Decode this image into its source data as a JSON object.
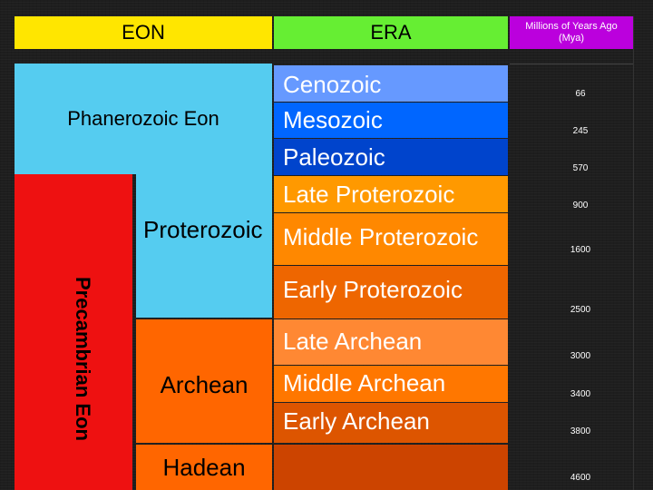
{
  "headers": {
    "eon": "EON",
    "era": "ERA",
    "mya": "Millions of Years Ago (Mya)"
  },
  "eons": {
    "phanerozoic": "Phanerozoic Eon",
    "precambrian": "Precambrian Eon",
    "proterozoic": "Proterozoic",
    "archean": "Archean",
    "hadean": "Hadean"
  },
  "eras": [
    {
      "name": "Cenozoic",
      "mya": "66"
    },
    {
      "name": "Mesozoic",
      "mya": "245"
    },
    {
      "name": "Paleozoic",
      "mya": "570"
    },
    {
      "name": "Late Proterozoic",
      "mya": "900"
    },
    {
      "name": "Middle Proterozoic",
      "mya": "1600"
    },
    {
      "name": "Early Proterozoic",
      "mya": "2500"
    },
    {
      "name": "Late Archean",
      "mya": "3000"
    },
    {
      "name": "Middle Archean",
      "mya": "3400"
    },
    {
      "name": "Early Archean",
      "mya": "3800"
    },
    {
      "name": "",
      "mya": "4600"
    }
  ],
  "colors": {
    "eon_header": "#FFE600",
    "era_header": "#66EE33",
    "mya_header": "#BB00DD",
    "phanerozoic": "#55CCF0",
    "precambrian": "#EE1111",
    "proterozoic_eon": "#55CCF0",
    "archean_eon": "#FF6600",
    "hadean_eon": "#FF6600",
    "cenozoic": "#6699FF",
    "mesozoic": "#0066FF",
    "paleozoic": "#0044CC",
    "late_proterozoic": "#FF9900",
    "middle_proterozoic": "#FF8800",
    "early_proterozoic": "#EE6600",
    "late_archean": "#FF8833",
    "middle_archean": "#FF7700",
    "early_archean": "#DD5500",
    "hadean_era": "#CC4400"
  }
}
